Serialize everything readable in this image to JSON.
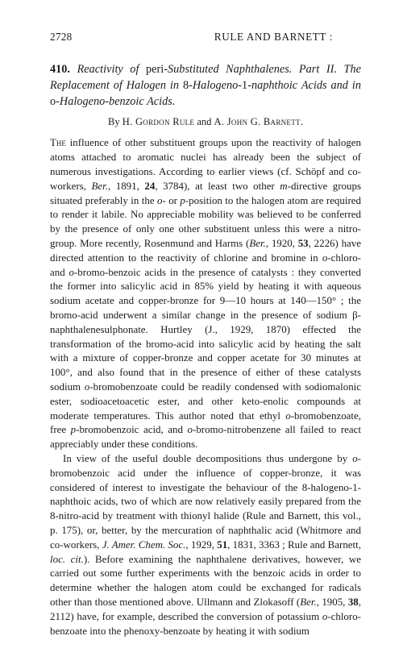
{
  "header": {
    "page_number": "2728",
    "running_head": "RULE AND BARNETT :"
  },
  "article": {
    "number": "410.",
    "title_line1_a": "Reactivity of ",
    "title_line1_b": "peri",
    "title_line1_c": "-Substituted Naphthalenes.",
    "title_line2_a": "Part II. The Replacement of Halogen in ",
    "title_line2_b": "8-",
    "title_line3_a": "Halogeno-",
    "title_line3_b": "1",
    "title_line3_c": "-naphthoic Acids and in ",
    "title_line3_d": "o",
    "title_line3_e": "-Halogeno-",
    "title_line4": "benzoic Acids."
  },
  "byline": {
    "prefix": "By ",
    "author1": "H. Gordon Rule",
    "and": " and ",
    "author2": "A. John G. Barnett",
    "suffix": "."
  },
  "paragraphs": {
    "p1_a": "The",
    "p1_b": " influence of other substituent groups upon the reactivity of halogen atoms attached to aromatic nuclei has already been the subject of numerous investigations. According to earlier views (cf. Schöpf and co-workers, ",
    "p1_c": "Ber.",
    "p1_d": ", 1891, ",
    "p1_e": "24",
    "p1_f": ", 3784), at least two other ",
    "p1_g": "m",
    "p1_h": "-directive groups situated preferably in the ",
    "p1_i": "o",
    "p1_j": "- or ",
    "p1_k": "p",
    "p1_l": "-position to the halogen atom are required to render it labile. No appreciable mobility was believed to be conferred by the presence of only one other substituent unless this were a nitro-group. More recently, Rosenmund and Harms (",
    "p1_m": "Ber.",
    "p1_n": ", 1920, ",
    "p1_o": "53",
    "p1_p": ", 2226) have directed attention to the reactivity of chlorine and bromine in ",
    "p1_q": "o",
    "p1_r": "-chloro- and ",
    "p1_s": "o",
    "p1_t": "-bromo-benzoic acids in the presence of catalysts : they converted the former into salicylic acid in 85% yield by heating it with aqueous sodium acetate and copper-bronze for 9—10 hours at 140—150° ; the bromo-acid underwent a similar change in the presence of sodium β-naphthalenesulphonate. Hurtley (J., 1929, 1870) effected the transformation of the bromo-acid into salicylic acid by heating the salt with a mixture of copper-bronze and copper acetate for 30 minutes at 100°, and also found that in the presence of either of these catalysts sodium ",
    "p1_u": "o",
    "p1_v": "-bromobenzoate could be readily condensed with sodiomalonic ester, sodioacetoacetic ester, and other keto-enolic compounds at moderate temperatures. This author noted that ethyl ",
    "p1_w": "o",
    "p1_x": "-bromobenzoate, free ",
    "p1_y": "p",
    "p1_z": "-bromobenzoic acid, and ",
    "p1_aa": "o",
    "p1_ab": "-bromo-nitrobenzene all failed to react appreciably under these conditions.",
    "p2_a": "In view of the useful double decompositions thus undergone by ",
    "p2_b": "o",
    "p2_c": "-bromobenzoic acid under the influence of copper-bronze, it was considered of interest to investigate the behaviour of the 8-halogeno-1-naphthoic acids, two of which are now relatively easily prepared from the 8-nitro-acid by treatment with thionyl halide (Rule and Barnett, this vol., p. 175), or, better, by the mercuration of naphthalic acid (Whitmore and co-workers, ",
    "p2_d": "J. Amer. Chem. Soc.",
    "p2_e": ", 1929, ",
    "p2_f": "51",
    "p2_g": ", 1831, 3363 ; Rule and Barnett, ",
    "p2_h": "loc. cit.",
    "p2_i": "). Before examining the naphthalene derivatives, however, we carried out some further experiments with the benzoic acids in order to determine whether the halogen atom could be exchanged for radicals other than those mentioned above. Ullmann and Zlokasoff (",
    "p2_j": "Ber.",
    "p2_k": ", 1905, ",
    "p2_l": "38",
    "p2_m": ", 2112) have, for example, described the conversion of potassium ",
    "p2_n": "o",
    "p2_o": "-chloro-benzoate into the phenoxy-benzoate by heating it with sodium"
  }
}
